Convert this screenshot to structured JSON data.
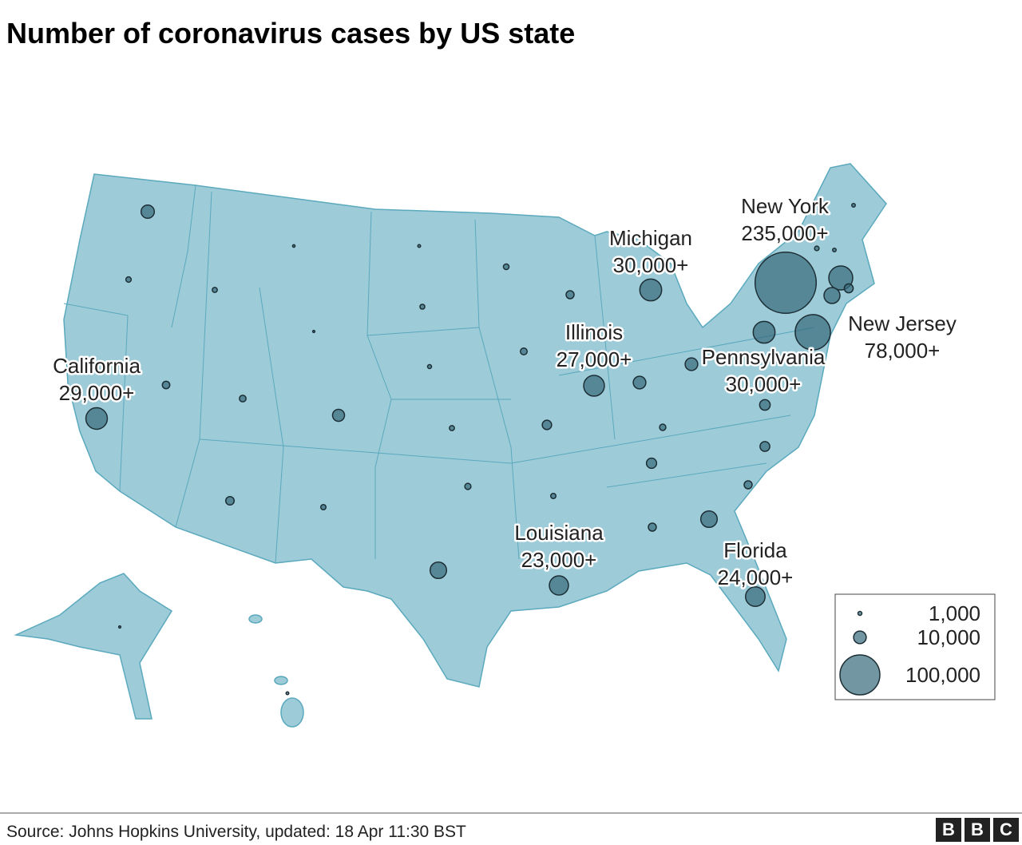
{
  "title": "Number of coronavirus cases by US state",
  "labeled_states": [
    {
      "name": "California",
      "value": 29000,
      "value_label": "29,000+"
    },
    {
      "name": "Michigan",
      "value": 30000,
      "value_label": "30,000+"
    },
    {
      "name": "New York",
      "value": 235000,
      "value_label": "235,000+"
    },
    {
      "name": "Illinois",
      "value": 27000,
      "value_label": "27,000+"
    },
    {
      "name": "New Jersey",
      "value": 78000,
      "value_label": "78,000+"
    },
    {
      "name": "Pennsylvania",
      "value": 30000,
      "value_label": "30,000+"
    },
    {
      "name": "Louisiana",
      "value": 23000,
      "value_label": "23,000+"
    },
    {
      "name": "Florida",
      "value": 24000,
      "value_label": "24,000+"
    }
  ],
  "other_bubbles": [
    11000,
    1800,
    1600,
    400,
    500,
    3500,
    2800,
    300,
    1500,
    2000,
    4000,
    9000,
    1000,
    2900,
    1600,
    5500,
    10000,
    10000,
    2500,
    7000,
    6000,
    6500,
    2400,
    1700,
    4500,
    1700,
    17000,
    4000,
    17000,
    4000,
    36000,
    16000,
    5000,
    800,
    1300,
    800,
    300,
    500
  ],
  "legend": [
    {
      "value": 1000,
      "label": "1,000"
    },
    {
      "value": 10000,
      "label": "10,000"
    },
    {
      "value": 100000,
      "label": "100,000"
    }
  ],
  "source": "Source: Johns Hopkins University, updated: 18 Apr 11:30 BST",
  "logo": "BBC"
}
